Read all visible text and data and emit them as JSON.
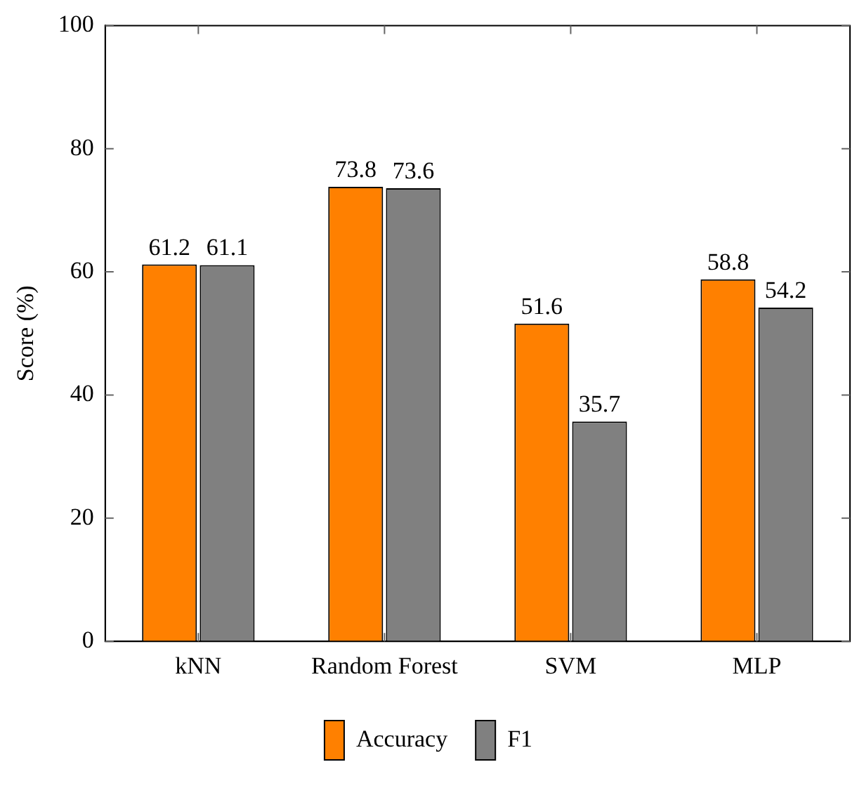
{
  "chart_data": {
    "type": "bar",
    "ylabel": "Score (%)",
    "categories": [
      "kNN",
      "Random Forest",
      "SVM",
      "MLP"
    ],
    "series": [
      {
        "name": "Accuracy",
        "color": "#ff8000",
        "values": [
          61.2,
          73.8,
          51.6,
          58.8
        ]
      },
      {
        "name": "F1",
        "color": "#808080",
        "values": [
          61.1,
          73.6,
          35.7,
          54.2
        ]
      }
    ],
    "ylim": [
      0,
      100
    ],
    "yticks": [
      0,
      20,
      40,
      60,
      80,
      100
    ],
    "grid": false,
    "legend": "bottom",
    "data_labels": true
  }
}
